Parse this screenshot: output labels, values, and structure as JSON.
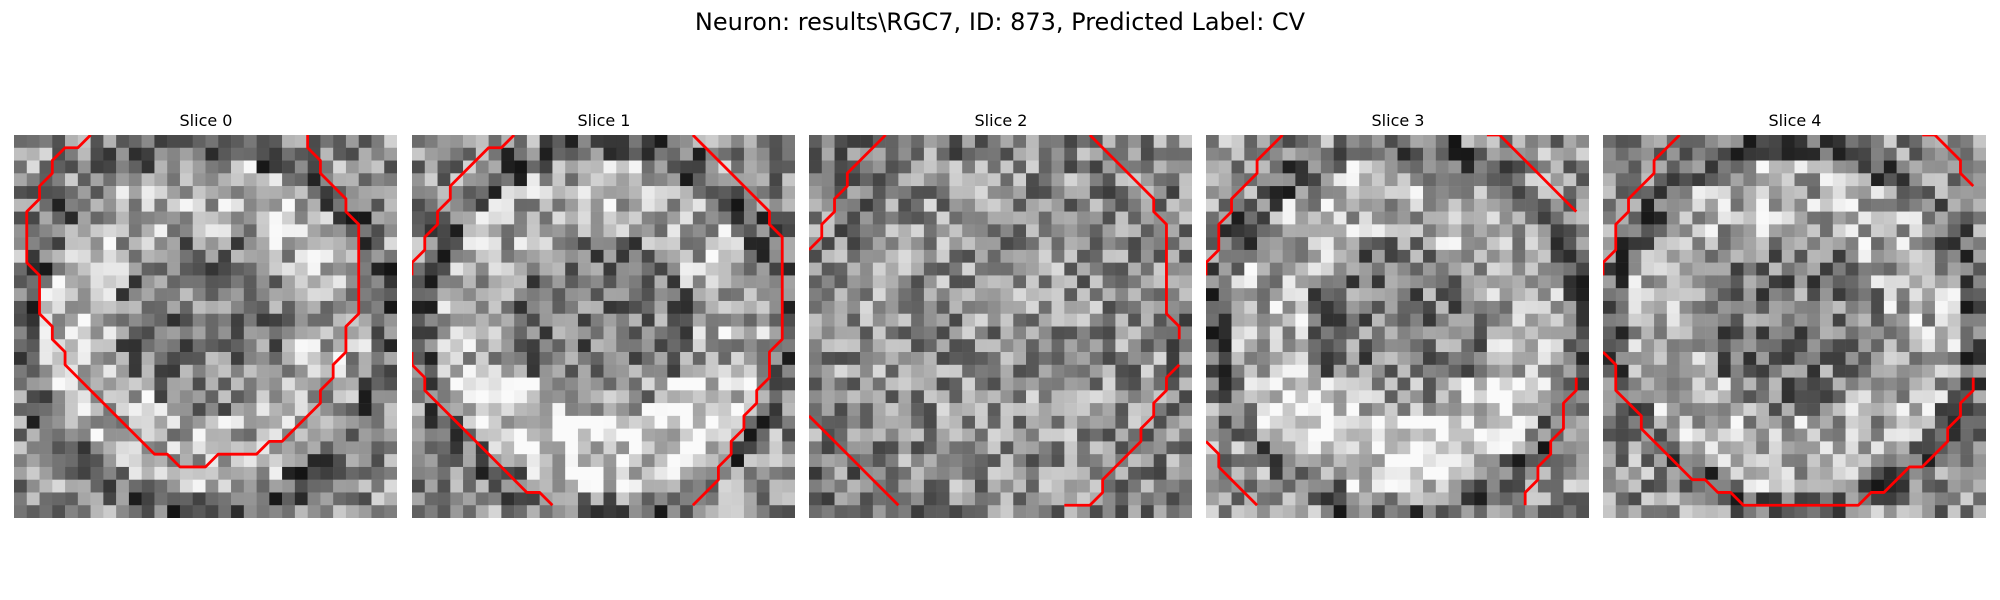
{
  "figure": {
    "title": "Neuron: results\\RGC7, ID: 873, Predicted Label: CV"
  },
  "panels": [
    {
      "title": "Slice 0",
      "seed": 11,
      "pattern": "ring"
    },
    {
      "title": "Slice 1",
      "seed": 23,
      "pattern": "bright-lower-ring"
    },
    {
      "title": "Slice 2",
      "seed": 37,
      "pattern": "noisy"
    },
    {
      "title": "Slice 3",
      "seed": 41,
      "pattern": "bright-lower-ring"
    },
    {
      "title": "Slice 4",
      "seed": 53,
      "pattern": "ring"
    }
  ],
  "colors": {
    "contour": "#ff0000",
    "background": "#ffffff"
  }
}
